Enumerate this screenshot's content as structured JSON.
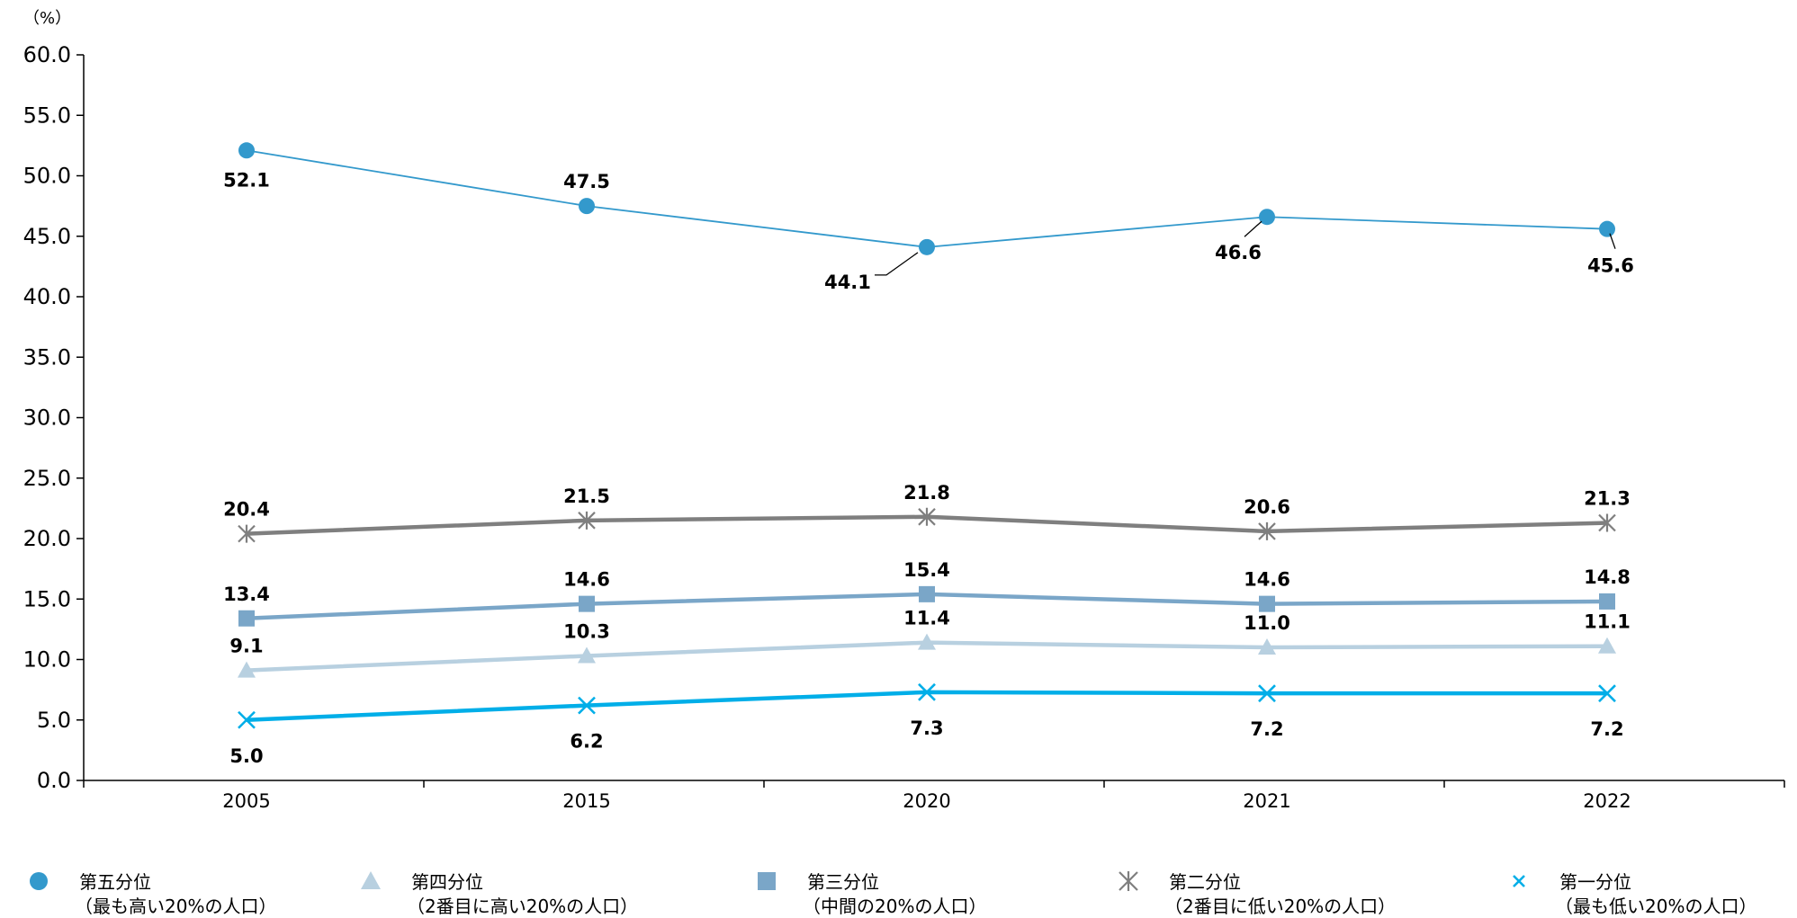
{
  "chart_data": {
    "type": "line",
    "unit_label": "（%）",
    "x": [
      "2005",
      "2015",
      "2020",
      "2021",
      "2022"
    ],
    "ylim": [
      0,
      60
    ],
    "y_ticks": [
      "0.0",
      "5.0",
      "10.0",
      "15.0",
      "20.0",
      "25.0",
      "30.0",
      "35.0",
      "40.0",
      "45.0",
      "50.0",
      "55.0",
      "60.0"
    ],
    "grid": false,
    "legend_position": "bottom",
    "series": [
      {
        "key": "q5",
        "name_line1": "第五分位",
        "name_line2": "（最も高い20%の人口）",
        "values": [
          52.1,
          47.5,
          44.1,
          46.6,
          45.6
        ],
        "labels": [
          "52.1",
          "47.5",
          "44.1",
          "46.6",
          "45.6"
        ],
        "color": "#3399cc",
        "marker": "circle"
      },
      {
        "key": "q4",
        "name_line1": "第四分位",
        "name_line2": "（2番目に高い20%の人口）",
        "values": [
          9.1,
          10.3,
          11.4,
          11.0,
          11.1
        ],
        "labels": [
          "9.1",
          "10.3",
          "11.4",
          "11.0",
          "11.1"
        ],
        "color": "#b8d0e0",
        "marker": "triangle"
      },
      {
        "key": "q3",
        "name_line1": "第三分位",
        "name_line2": "（中間の20%の人口）",
        "values": [
          13.4,
          14.6,
          15.4,
          14.6,
          14.8
        ],
        "labels": [
          "13.4",
          "14.6",
          "15.4",
          "14.6",
          "14.8"
        ],
        "color": "#7aa6c8",
        "marker": "square"
      },
      {
        "key": "q2",
        "name_line1": "第二分位",
        "name_line2": "（2番目に低い20%の人口）",
        "values": [
          20.4,
          21.5,
          21.8,
          20.6,
          21.3
        ],
        "labels": [
          "20.4",
          "21.5",
          "21.8",
          "20.6",
          "21.3"
        ],
        "color": "#7f7f7f",
        "marker": "asterisk"
      },
      {
        "key": "q1",
        "name_line1": "第一分位",
        "name_line2": "（最も低い20%の人口）",
        "values": [
          5.0,
          6.2,
          7.3,
          7.2,
          7.2
        ],
        "labels": [
          "5.0",
          "6.2",
          "7.3",
          "7.2",
          "7.2"
        ],
        "color": "#00aee8",
        "marker": "x"
      }
    ]
  }
}
